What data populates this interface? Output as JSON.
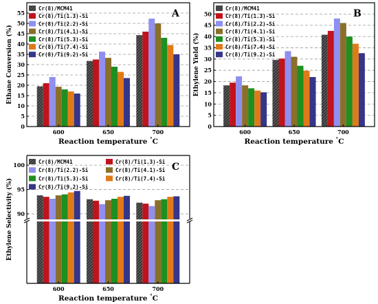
{
  "colors": {
    "cr_mcm41": "#3a3a3a",
    "ti_1_3": "#c0141c",
    "ti_2_2": "#8f8ff0",
    "ti_4_1": "#8a6f2a",
    "ti_5_3": "#1f8f1f",
    "ti_7_4": "#e07a18",
    "ti_9_2": "#35358a"
  },
  "chart_data": [
    {
      "panel": "A",
      "type": "bar",
      "xlabel": "Reaction temperature",
      "xlabel_unit": "°C",
      "ylabel": "Ethane Conversion (%)",
      "ylim": [
        0,
        60
      ],
      "yticks": [
        "0",
        "5",
        "10",
        "15",
        "20",
        "25",
        "30",
        "35",
        "40",
        "45",
        "50",
        "55"
      ],
      "ytick_values": [
        0,
        5,
        10,
        15,
        20,
        25,
        30,
        35,
        40,
        45,
        50,
        55
      ],
      "grid": true,
      "legend_position": "top-left",
      "categories": [
        "600",
        "650",
        "700"
      ],
      "series": [
        {
          "name": "Cr(8)/MCM41",
          "color_key": "cr_mcm41",
          "values": [
            19.5,
            31.8,
            44.3
          ]
        },
        {
          "name": "Cr(8)/Ti(1.3)-Si",
          "color_key": "ti_1_3",
          "values": [
            21.0,
            32.5,
            46.0
          ]
        },
        {
          "name": "Cr(8)/Ti(2.2)-Si",
          "color_key": "ti_2_2",
          "values": [
            24.0,
            36.3,
            52.3
          ]
        },
        {
          "name": "Cr(8)/Ti(4.1)-Si",
          "color_key": "ti_4_1",
          "values": [
            19.3,
            33.3,
            50.0
          ]
        },
        {
          "name": "Cr(8)/Ti(5.3)-Si",
          "color_key": "ti_5_3",
          "values": [
            18.0,
            29.0,
            43.0
          ]
        },
        {
          "name": "Cr(8)/Ti(7.4)-Si",
          "color_key": "ti_7_4",
          "values": [
            17.0,
            26.5,
            39.5
          ]
        },
        {
          "name": "Cr(8)/Ti(9.2)-Si",
          "color_key": "ti_9_2",
          "values": [
            16.0,
            23.5,
            35.0
          ]
        }
      ]
    },
    {
      "panel": "B",
      "type": "bar",
      "xlabel": "Reaction temperature",
      "xlabel_unit": "°C",
      "ylabel": "Ethylene Yield (%)",
      "ylim": [
        0,
        55
      ],
      "yticks": [
        "0",
        "5",
        "10",
        "15",
        "20",
        "25",
        "30",
        "35",
        "40",
        "45",
        "50"
      ],
      "ytick_values": [
        0,
        5,
        10,
        15,
        20,
        25,
        30,
        35,
        40,
        45,
        50
      ],
      "grid": true,
      "legend_position": "top-left",
      "categories": [
        "600",
        "650",
        "700"
      ],
      "series": [
        {
          "name": "Cr(8)/MCM41",
          "color_key": "cr_mcm41",
          "values": [
            18.3,
            29.6,
            40.8
          ]
        },
        {
          "name": "Cr(8)/Ti(1.3)-Si",
          "color_key": "ti_1_3",
          "values": [
            19.5,
            30.2,
            42.5
          ]
        },
        {
          "name": "Cr(8)/Ti(2.2)-Si",
          "color_key": "ti_2_2",
          "values": [
            22.3,
            33.5,
            48.0
          ]
        },
        {
          "name": "Cr(8)/Ti(4.1)-Si",
          "color_key": "ti_4_1",
          "values": [
            18.3,
            31.0,
            46.0
          ]
        },
        {
          "name": "Cr(8)/Ti(5.3)-Si",
          "color_key": "ti_5_3",
          "values": [
            17.0,
            27.0,
            40.0
          ]
        },
        {
          "name": "Cr(8)/Ti(7.4)-Si",
          "color_key": "ti_7_4",
          "values": [
            16.0,
            24.8,
            36.8
          ]
        },
        {
          "name": "Cr(8)/Ti(9.2)-Si",
          "color_key": "ti_9_2",
          "values": [
            15.2,
            22.0,
            32.6
          ]
        }
      ]
    },
    {
      "panel": "C",
      "type": "bar",
      "xlabel": "Reaction temperature",
      "xlabel_unit": "°C",
      "ylabel": "Ethylene Selectivity (%)",
      "ylim": [
        85,
        102
      ],
      "broken_axis": true,
      "yticks": [
        "90",
        "95",
        "100"
      ],
      "ytick_values": [
        90,
        95,
        100
      ],
      "grid": true,
      "legend_position": "top",
      "categories": [
        "600",
        "650",
        "700"
      ],
      "series": [
        {
          "name": "Cr(8)/MCM41",
          "color_key": "cr_mcm41",
          "values": [
            93.8,
            93.0,
            92.3
          ]
        },
        {
          "name": "Cr(8)/Ti(1.3)-Si",
          "color_key": "ti_1_3",
          "values": [
            93.5,
            92.7,
            92.1
          ]
        },
        {
          "name": "Cr(8)/Ti(2.2)-Si",
          "color_key": "ti_2_2",
          "values": [
            93.1,
            92.0,
            91.6
          ]
        },
        {
          "name": "Cr(8)/Ti(4.1)-Si",
          "color_key": "ti_4_1",
          "values": [
            93.8,
            92.8,
            92.8
          ]
        },
        {
          "name": "Cr(8)/Ti(5.3)-Si",
          "color_key": "ti_5_3",
          "values": [
            94.0,
            93.1,
            93.0
          ]
        },
        {
          "name": "Cr(8)/Ti(7.4)-Si",
          "color_key": "ti_7_4",
          "values": [
            94.4,
            93.5,
            93.5
          ]
        },
        {
          "name": "Cr(8)/Ti(9.2)-Si",
          "color_key": "ti_9_2",
          "values": [
            94.7,
            93.7,
            93.6
          ]
        }
      ]
    }
  ]
}
